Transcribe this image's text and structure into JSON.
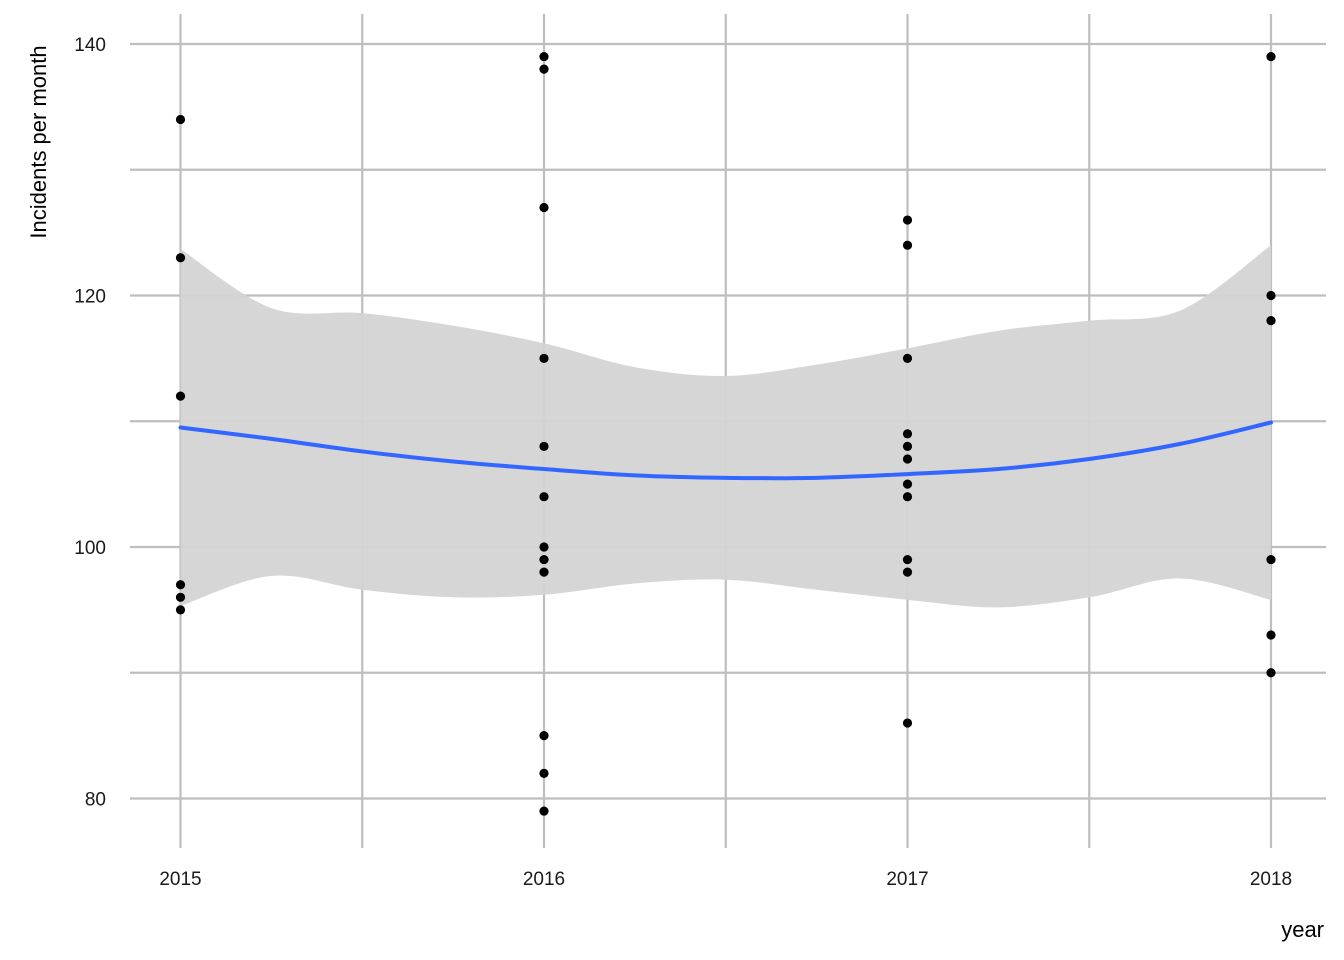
{
  "chart_data": {
    "type": "scatter",
    "title": "",
    "xlabel": "year",
    "ylabel": "Incidents per month",
    "xlim": [
      2014.86,
      2018.15
    ],
    "ylim": [
      77,
      141
    ],
    "x_ticks": [
      2015,
      2016,
      2017,
      2018
    ],
    "x_tick_labels": [
      "2015",
      "2016",
      "2017",
      "2018"
    ],
    "y_ticks": [
      80,
      100,
      120,
      140
    ],
    "y_tick_labels": [
      "80",
      "100",
      "120",
      "140"
    ],
    "grid": true,
    "legend": "none",
    "points": [
      {
        "x": 2015,
        "y": 134
      },
      {
        "x": 2015,
        "y": 123
      },
      {
        "x": 2015,
        "y": 112
      },
      {
        "x": 2015,
        "y": 97
      },
      {
        "x": 2015,
        "y": 96
      },
      {
        "x": 2015,
        "y": 95
      },
      {
        "x": 2016,
        "y": 139
      },
      {
        "x": 2016,
        "y": 138
      },
      {
        "x": 2016,
        "y": 127
      },
      {
        "x": 2016,
        "y": 115
      },
      {
        "x": 2016,
        "y": 108
      },
      {
        "x": 2016,
        "y": 104
      },
      {
        "x": 2016,
        "y": 100
      },
      {
        "x": 2016,
        "y": 99
      },
      {
        "x": 2016,
        "y": 98
      },
      {
        "x": 2016,
        "y": 85
      },
      {
        "x": 2016,
        "y": 82
      },
      {
        "x": 2016,
        "y": 79
      },
      {
        "x": 2017,
        "y": 126
      },
      {
        "x": 2017,
        "y": 124
      },
      {
        "x": 2017,
        "y": 115
      },
      {
        "x": 2017,
        "y": 109
      },
      {
        "x": 2017,
        "y": 108
      },
      {
        "x": 2017,
        "y": 107
      },
      {
        "x": 2017,
        "y": 105
      },
      {
        "x": 2017,
        "y": 104
      },
      {
        "x": 2017,
        "y": 99
      },
      {
        "x": 2017,
        "y": 98
      },
      {
        "x": 2017,
        "y": 86
      },
      {
        "x": 2018,
        "y": 139
      },
      {
        "x": 2018,
        "y": 120
      },
      {
        "x": 2018,
        "y": 118
      },
      {
        "x": 2018,
        "y": 99
      },
      {
        "x": 2018,
        "y": 93
      },
      {
        "x": 2018,
        "y": 90
      }
    ],
    "smooth": {
      "method": "loess",
      "line_color": "#3366FF",
      "band_color": "#D4D4D4",
      "x": [
        2015,
        2015.25,
        2015.5,
        2015.75,
        2016,
        2016.25,
        2016.5,
        2016.75,
        2017,
        2017.25,
        2017.5,
        2017.75,
        2018
      ],
      "y": [
        109.5,
        108.6,
        107.6,
        106.8,
        106.2,
        105.7,
        105.5,
        105.5,
        105.8,
        106.2,
        107.0,
        108.2,
        109.9
      ],
      "upper": [
        123.7,
        119.0,
        118.6,
        117.6,
        116.2,
        114.3,
        113.6,
        114.5,
        115.8,
        117.2,
        118.0,
        118.8,
        124.0
      ],
      "lower": [
        95.3,
        97.7,
        96.6,
        96.0,
        96.2,
        97.1,
        97.4,
        96.6,
        95.8,
        95.2,
        96.0,
        97.5,
        95.8
      ]
    },
    "colors": {
      "point": "#000000",
      "grid": "#BEBEBE"
    }
  }
}
